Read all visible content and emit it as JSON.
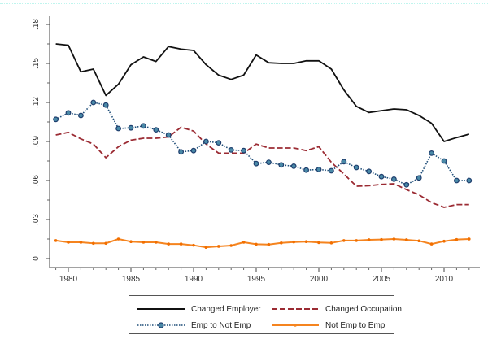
{
  "chart_data": {
    "type": "line",
    "title": "",
    "xlabel": "",
    "ylabel": "",
    "xlim": [
      1979,
      2012
    ],
    "ylim": [
      0,
      0.18
    ],
    "grid": false,
    "legend_position": "bottom",
    "x_ticks": [
      1980,
      1985,
      1990,
      1995,
      2000,
      2005,
      2010
    ],
    "x_tick_labels": [
      "1980",
      "1985",
      "1990",
      "1995",
      "2000",
      "2005",
      "2010"
    ],
    "y_ticks": [
      0,
      0.03,
      0.06,
      0.09,
      0.12,
      0.15,
      0.18
    ],
    "y_tick_labels": [
      "0",
      ".03",
      ".06",
      ".09",
      ".12",
      ".15",
      ".18"
    ],
    "x": [
      1979,
      1980,
      1981,
      1982,
      1983,
      1984,
      1985,
      1986,
      1987,
      1988,
      1989,
      1990,
      1991,
      1992,
      1993,
      1994,
      1995,
      1996,
      1997,
      1998,
      1999,
      2000,
      2001,
      2002,
      2003,
      2004,
      2005,
      2006,
      2007,
      2008,
      2009,
      2010,
      2011,
      2012
    ],
    "series": [
      {
        "name": "Changed Employer",
        "style": "solid",
        "color": "#111111",
        "marker": "none",
        "values": [
          0.165,
          0.164,
          0.1435,
          0.1456,
          0.1254,
          0.134,
          0.149,
          0.155,
          0.1515,
          0.163,
          0.161,
          0.16,
          0.149,
          0.141,
          0.1377,
          0.141,
          0.1565,
          0.1505,
          0.15,
          0.15,
          0.152,
          0.152,
          0.1456,
          0.1296,
          0.117,
          0.1123,
          0.1137,
          0.115,
          0.1144,
          0.11,
          0.104,
          0.09,
          0.093,
          0.0956
        ]
      },
      {
        "name": "Changed Occupation",
        "style": "dashed",
        "color": "#9b2b33",
        "marker": "none",
        "values": [
          0.095,
          0.097,
          0.092,
          0.088,
          0.0775,
          0.086,
          0.091,
          0.0925,
          0.0925,
          0.0935,
          0.101,
          0.098,
          0.088,
          0.081,
          0.081,
          0.081,
          0.088,
          0.085,
          0.085,
          0.085,
          0.083,
          0.086,
          0.074,
          0.065,
          0.0556,
          0.056,
          0.057,
          0.0575,
          0.053,
          0.049,
          0.043,
          0.0394,
          0.0415,
          0.0415
        ]
      },
      {
        "name": "Emp to Not Emp",
        "style": "dotted",
        "color": "#1f4e79",
        "marker": "circle",
        "values": [
          0.107,
          0.112,
          0.11,
          0.12,
          0.118,
          0.1,
          0.1005,
          0.102,
          0.099,
          0.095,
          0.082,
          0.083,
          0.09,
          0.089,
          0.0835,
          0.083,
          0.073,
          0.074,
          0.072,
          0.071,
          0.068,
          0.0685,
          0.0675,
          0.0745,
          0.07,
          0.067,
          0.063,
          0.061,
          0.0567,
          0.062,
          0.081,
          0.075,
          0.06,
          0.06
        ]
      },
      {
        "name": "Not Emp to Emp",
        "style": "solid",
        "color": "#f5841f",
        "marker": "dot",
        "values": [
          0.0138,
          0.0125,
          0.0125,
          0.0117,
          0.0117,
          0.015,
          0.013,
          0.0125,
          0.0125,
          0.0112,
          0.0112,
          0.0102,
          0.0086,
          0.0094,
          0.01,
          0.0125,
          0.011,
          0.0108,
          0.012,
          0.0127,
          0.013,
          0.0123,
          0.012,
          0.0138,
          0.0138,
          0.0144,
          0.0146,
          0.015,
          0.0144,
          0.0136,
          0.0112,
          0.0133,
          0.0146,
          0.015
        ]
      }
    ]
  },
  "legend": {
    "items": [
      {
        "label": "Changed Employer"
      },
      {
        "label": "Changed Occupation"
      },
      {
        "label": "Emp to Not Emp"
      },
      {
        "label": "Not Emp to Emp"
      }
    ]
  }
}
